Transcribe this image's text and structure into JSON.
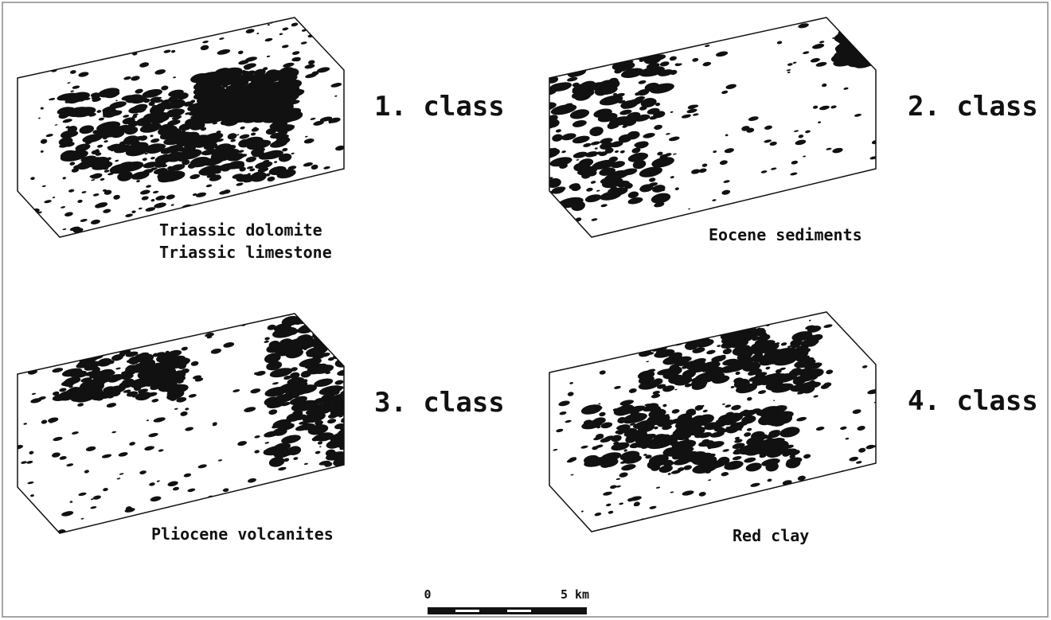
{
  "panels": [
    {
      "class_label": "1. class",
      "description": [
        "Triassic dolomite",
        "Triassic limestone"
      ]
    },
    {
      "class_label": "2. class",
      "description": [
        "Eocene sediments"
      ]
    },
    {
      "class_label": "3. class",
      "description": [
        "Pliocene volcanites"
      ]
    },
    {
      "class_label": "4. class",
      "description": [
        "Red clay"
      ]
    }
  ],
  "scale_bar": {
    "start": "0",
    "end": "5 km"
  }
}
